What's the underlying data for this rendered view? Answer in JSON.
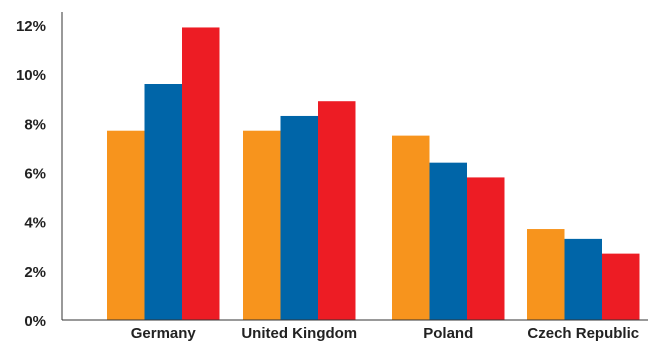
{
  "chart_data": {
    "type": "bar",
    "title": "",
    "xlabel": "",
    "ylabel": "",
    "ylim": [
      0,
      12
    ],
    "yticks": [
      0,
      2,
      4,
      6,
      8,
      10,
      12
    ],
    "ytick_labels": [
      "0%",
      "2%",
      "4%",
      "6%",
      "8%",
      "10%",
      "12%"
    ],
    "categories": [
      "Germany",
      "United Kingdom",
      "Poland",
      "Czech Republic"
    ],
    "series": [
      {
        "color": "#f7941d",
        "values": [
          7.7,
          7.7,
          7.5,
          3.7
        ]
      },
      {
        "color": "#0065a8",
        "values": [
          9.6,
          8.3,
          6.4,
          3.3
        ]
      },
      {
        "color": "#ed1c24",
        "values": [
          11.9,
          8.9,
          5.8,
          2.7
        ]
      }
    ],
    "grid": false,
    "legend": "none"
  }
}
